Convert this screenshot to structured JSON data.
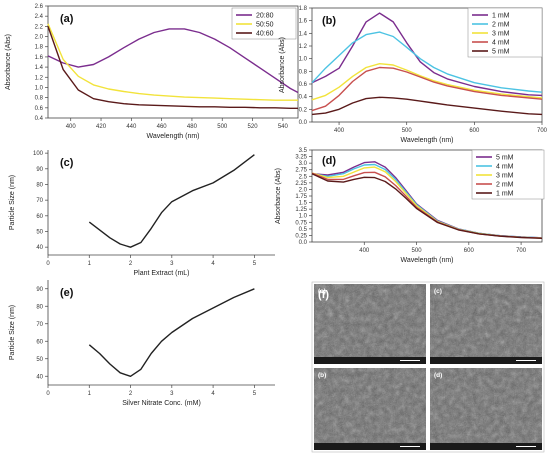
{
  "chart_data": [
    {
      "panel_label": "(a)",
      "type": "line",
      "xlabel": "Wavelength (nm)",
      "ylabel": "Absorbance (Abs)",
      "xlim": [
        385,
        550
      ],
      "ylim": [
        0.4,
        2.6
      ],
      "xticks": [
        400,
        420,
        440,
        460,
        480,
        500,
        520,
        540
      ],
      "yticks": [
        0.4,
        0.6,
        0.8,
        1.0,
        1.2,
        1.4,
        1.6,
        1.8,
        2.0,
        2.2,
        2.4,
        2.6
      ],
      "ytick_labels": [
        "0.4",
        "0.6",
        "0.8",
        "1.0",
        "1.2",
        "1.4",
        "1.6",
        "1.8",
        "2.0",
        "2.2",
        "2.4",
        "2.6"
      ],
      "legend_position": "top-right",
      "series": [
        {
          "name": "20:80",
          "color": "#7b2d8e",
          "x": [
            385,
            395,
            405,
            415,
            425,
            435,
            445,
            455,
            465,
            475,
            485,
            495,
            505,
            515,
            525,
            535,
            545,
            550
          ],
          "y": [
            1.62,
            1.48,
            1.4,
            1.45,
            1.6,
            1.78,
            1.95,
            2.08,
            2.15,
            2.15,
            2.08,
            1.95,
            1.78,
            1.58,
            1.38,
            1.18,
            0.98,
            0.9
          ]
        },
        {
          "name": "50:50",
          "color": "#f2e33b",
          "x": [
            385,
            395,
            405,
            415,
            425,
            435,
            445,
            455,
            465,
            475,
            485,
            495,
            505,
            515,
            525,
            535,
            545,
            550
          ],
          "y": [
            2.25,
            1.55,
            1.22,
            1.05,
            0.97,
            0.92,
            0.88,
            0.85,
            0.83,
            0.81,
            0.8,
            0.79,
            0.78,
            0.77,
            0.76,
            0.75,
            0.75,
            0.75
          ]
        },
        {
          "name": "40:60",
          "color": "#5a1a1a",
          "x": [
            385,
            395,
            405,
            415,
            425,
            435,
            445,
            455,
            465,
            475,
            485,
            495,
            505,
            515,
            525,
            535,
            545,
            550
          ],
          "y": [
            2.2,
            1.35,
            0.95,
            0.78,
            0.72,
            0.68,
            0.66,
            0.65,
            0.64,
            0.63,
            0.62,
            0.62,
            0.61,
            0.61,
            0.6,
            0.6,
            0.59,
            0.59
          ]
        }
      ]
    },
    {
      "panel_label": "(b)",
      "type": "line",
      "xlabel": "Wavelength (nm)",
      "ylabel": "Absorbance (Abs)",
      "xlim": [
        360,
        700
      ],
      "ylim": [
        0.0,
        1.8
      ],
      "xticks": [
        400,
        500,
        600,
        700
      ],
      "yticks": [
        0.0,
        0.2,
        0.4,
        0.6,
        0.8,
        1.0,
        1.2,
        1.4,
        1.6,
        1.8
      ],
      "ytick_labels": [
        "0.0",
        "0.2",
        "0.4",
        "0.6",
        "0.8",
        "1.0",
        "1.2",
        "1.4",
        "1.6",
        "1.8"
      ],
      "legend_position": "top-right",
      "series": [
        {
          "name": "1 mM",
          "color": "#7b2d8e",
          "x": [
            360,
            380,
            400,
            420,
            440,
            460,
            480,
            500,
            520,
            540,
            560,
            600,
            640,
            680,
            700
          ],
          "y": [
            0.62,
            0.72,
            0.85,
            1.2,
            1.58,
            1.72,
            1.58,
            1.25,
            0.95,
            0.78,
            0.68,
            0.56,
            0.48,
            0.43,
            0.42
          ]
        },
        {
          "name": "2 mM",
          "color": "#4cc3e3",
          "x": [
            360,
            380,
            400,
            420,
            440,
            460,
            480,
            500,
            520,
            540,
            560,
            600,
            640,
            680,
            700
          ],
          "y": [
            0.62,
            0.85,
            1.05,
            1.25,
            1.38,
            1.42,
            1.35,
            1.18,
            1.0,
            0.86,
            0.76,
            0.62,
            0.54,
            0.49,
            0.47
          ]
        },
        {
          "name": "3 mM",
          "color": "#f2e33b",
          "x": [
            360,
            380,
            400,
            420,
            440,
            460,
            480,
            500,
            520,
            540,
            560,
            600,
            640,
            680,
            700
          ],
          "y": [
            0.35,
            0.42,
            0.55,
            0.72,
            0.86,
            0.92,
            0.9,
            0.82,
            0.73,
            0.65,
            0.59,
            0.5,
            0.44,
            0.4,
            0.38
          ]
        },
        {
          "name": "4 mM",
          "color": "#c8504f",
          "x": [
            360,
            380,
            400,
            420,
            440,
            460,
            480,
            500,
            520,
            540,
            560,
            600,
            640,
            680,
            700
          ],
          "y": [
            0.18,
            0.25,
            0.42,
            0.64,
            0.8,
            0.86,
            0.85,
            0.79,
            0.71,
            0.63,
            0.57,
            0.48,
            0.42,
            0.38,
            0.36
          ]
        },
        {
          "name": "5 mM",
          "color": "#5a1a1a",
          "x": [
            360,
            380,
            400,
            420,
            440,
            460,
            480,
            500,
            520,
            540,
            560,
            600,
            640,
            680,
            700
          ],
          "y": [
            0.12,
            0.14,
            0.2,
            0.3,
            0.37,
            0.39,
            0.38,
            0.36,
            0.33,
            0.3,
            0.27,
            0.22,
            0.17,
            0.13,
            0.12
          ]
        }
      ]
    },
    {
      "panel_label": "(c)",
      "type": "line",
      "xlabel": "Plant Extract (mL)",
      "ylabel": "Particle Size (nm)",
      "xlim": [
        0,
        5.5
      ],
      "ylim": [
        35,
        102
      ],
      "xticks": [
        0,
        1,
        2,
        3,
        4,
        5
      ],
      "yticks": [
        40,
        50,
        60,
        70,
        80,
        90,
        100
      ],
      "legend_position": "none",
      "series": [
        {
          "color": "#222222",
          "x": [
            1.0,
            1.25,
            1.5,
            1.75,
            2.0,
            2.25,
            2.5,
            2.75,
            3.0,
            3.5,
            4.0,
            4.5,
            5.0
          ],
          "y": [
            56,
            51,
            46,
            42,
            40,
            43,
            52,
            62,
            69,
            76,
            81,
            89,
            99
          ]
        }
      ]
    },
    {
      "panel_label": "(d)",
      "type": "line",
      "xlabel": "Wavelength (nm)",
      "ylabel": "Absorbance (Abs)",
      "xlim": [
        300,
        740
      ],
      "ylim": [
        0.0,
        3.5
      ],
      "xticks": [
        400,
        500,
        600,
        700
      ],
      "yticks": [
        0.0,
        0.25,
        0.5,
        0.75,
        1.0,
        1.25,
        1.5,
        1.75,
        2.0,
        2.25,
        2.5,
        2.75,
        3.0,
        3.25,
        3.5
      ],
      "ytick_labels": [
        "0.0",
        "0.25",
        "0.5",
        "0.75",
        "1.0",
        "1.25",
        "1.5",
        "1.75",
        "2.0",
        "2.25",
        "2.5",
        "2.75",
        "3.0",
        "3.25",
        "3.5"
      ],
      "legend_position": "top-right",
      "series": [
        {
          "name": "5 mM",
          "color": "#7b2d8e",
          "x": [
            300,
            330,
            360,
            380,
            400,
            420,
            440,
            460,
            480,
            500,
            540,
            580,
            620,
            660,
            700,
            740
          ],
          "y": [
            2.6,
            2.55,
            2.65,
            2.85,
            3.02,
            3.05,
            2.85,
            2.45,
            1.95,
            1.45,
            0.82,
            0.5,
            0.33,
            0.24,
            0.19,
            0.16
          ]
        },
        {
          "name": "4 mM",
          "color": "#4cc3e3",
          "x": [
            300,
            330,
            360,
            380,
            400,
            420,
            440,
            460,
            480,
            500,
            540,
            580,
            620,
            660,
            700,
            740
          ],
          "y": [
            2.6,
            2.5,
            2.6,
            2.78,
            2.93,
            2.95,
            2.76,
            2.38,
            1.9,
            1.42,
            0.8,
            0.49,
            0.33,
            0.24,
            0.19,
            0.16
          ]
        },
        {
          "name": "3 mM",
          "color": "#f2e33b",
          "x": [
            300,
            330,
            360,
            380,
            400,
            420,
            440,
            460,
            480,
            500,
            540,
            580,
            620,
            660,
            700,
            740
          ],
          "y": [
            2.62,
            2.45,
            2.5,
            2.66,
            2.82,
            2.85,
            2.67,
            2.3,
            1.84,
            1.38,
            0.78,
            0.48,
            0.32,
            0.23,
            0.18,
            0.15
          ]
        },
        {
          "name": "2 mM",
          "color": "#c8504f",
          "x": [
            300,
            330,
            360,
            380,
            400,
            420,
            440,
            460,
            480,
            500,
            540,
            580,
            620,
            660,
            700,
            740
          ],
          "y": [
            2.62,
            2.38,
            2.38,
            2.52,
            2.64,
            2.65,
            2.48,
            2.15,
            1.74,
            1.32,
            0.76,
            0.47,
            0.31,
            0.23,
            0.18,
            0.15
          ]
        },
        {
          "name": "1 mM",
          "color": "#5a1a1a",
          "x": [
            300,
            330,
            360,
            380,
            400,
            420,
            440,
            460,
            480,
            500,
            540,
            580,
            620,
            660,
            700,
            740
          ],
          "y": [
            2.6,
            2.32,
            2.28,
            2.38,
            2.46,
            2.45,
            2.3,
            2.02,
            1.66,
            1.28,
            0.74,
            0.46,
            0.31,
            0.22,
            0.17,
            0.14
          ]
        }
      ]
    },
    {
      "panel_label": "(e)",
      "type": "line",
      "xlabel": "Silver Nitrate Conc. (mM)",
      "ylabel": "Particle Size (nm)",
      "xlim": [
        0,
        5.5
      ],
      "ylim": [
        35,
        95
      ],
      "xticks": [
        0,
        1,
        2,
        3,
        4,
        5
      ],
      "yticks": [
        40,
        50,
        60,
        70,
        80,
        90
      ],
      "legend_position": "none",
      "series": [
        {
          "color": "#222222",
          "x": [
            1.0,
            1.25,
            1.5,
            1.75,
            2.0,
            2.25,
            2.5,
            2.75,
            3.0,
            3.5,
            4.0,
            4.5,
            5.0
          ],
          "y": [
            58,
            53,
            47,
            42,
            40,
            44,
            53,
            60,
            65,
            73,
            79,
            85,
            90
          ]
        }
      ]
    }
  ],
  "sem_figure": {
    "panel_label": "(f)",
    "image_labels": [
      "(a)",
      "(c)",
      "(b)",
      "(d)"
    ],
    "description_colors": {
      "background": "#4a4a4a",
      "border": "#ffffff"
    }
  }
}
